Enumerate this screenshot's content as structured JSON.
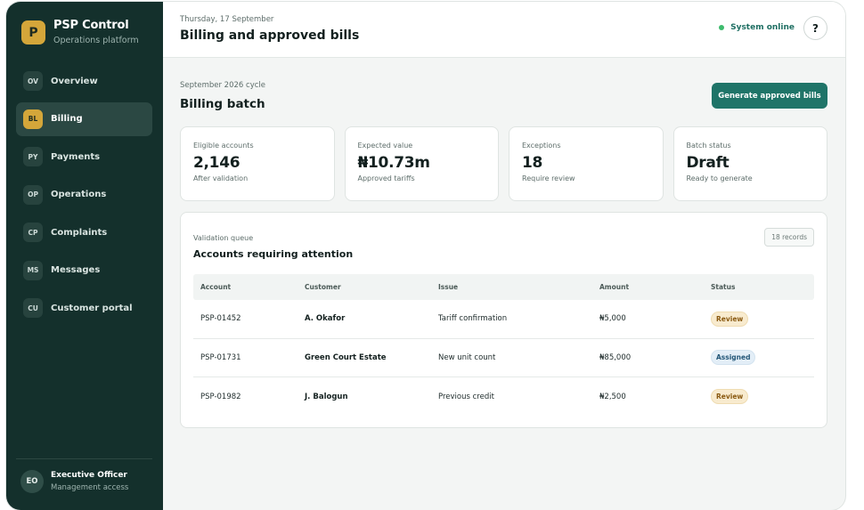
{
  "brand": {
    "logo": "P",
    "name": "PSP Control",
    "subtitle": "Operations platform"
  },
  "nav": [
    {
      "abbr": "OV",
      "label": "Overview"
    },
    {
      "abbr": "BL",
      "label": "Billing",
      "active": true
    },
    {
      "abbr": "PY",
      "label": "Payments"
    },
    {
      "abbr": "OP",
      "label": "Operations"
    },
    {
      "abbr": "CP",
      "label": "Complaints"
    },
    {
      "abbr": "MS",
      "label": "Messages"
    },
    {
      "abbr": "CU",
      "label": "Customer portal"
    }
  ],
  "user": {
    "initials": "EO",
    "name": "Executive Officer",
    "role": "Management access"
  },
  "header": {
    "date": "Thursday, 17 September",
    "title": "Billing and approved bills",
    "status": "System online",
    "help": "?"
  },
  "batch": {
    "cycle": "September 2026 cycle",
    "title": "Billing batch",
    "action": "Generate approved bills"
  },
  "cards": [
    {
      "label": "Eligible accounts",
      "value": "2,146",
      "note": "After validation"
    },
    {
      "label": "Expected value",
      "value": "₦10.73m",
      "note": "Approved tariffs"
    },
    {
      "label": "Exceptions",
      "value": "18",
      "note": "Require review"
    },
    {
      "label": "Batch status",
      "value": "Draft",
      "note": "Ready to generate"
    }
  ],
  "queue": {
    "caption": "Validation queue",
    "title": "Accounts requiring attention",
    "records": "18 records",
    "columns": [
      "Account",
      "Customer",
      "Issue",
      "Amount",
      "Status"
    ],
    "rows": [
      {
        "account": "PSP-01452",
        "customer": "A. Okafor",
        "issue": "Tariff confirmation",
        "amount": "₦5,000",
        "status": "Review"
      },
      {
        "account": "PSP-01731",
        "customer": "Green Court Estate",
        "issue": "New unit count",
        "amount": "₦85,000",
        "status": "Assigned"
      },
      {
        "account": "PSP-01982",
        "customer": "J. Balogun",
        "issue": "Previous credit",
        "amount": "₦2,500",
        "status": "Review"
      }
    ]
  },
  "colors": {
    "sidebar": "#14302c",
    "accent": "#1f7468",
    "brand_gold": "#d4a63a",
    "online": "#3dbb6d"
  }
}
